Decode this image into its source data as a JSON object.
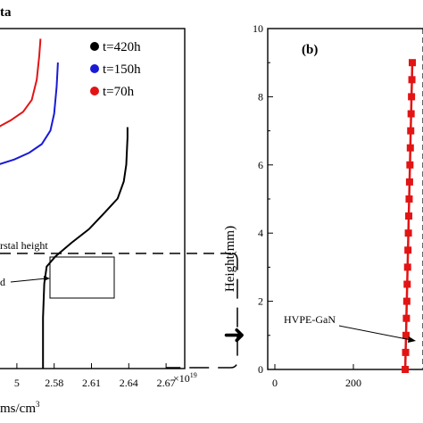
{
  "chart_data": [
    {
      "type": "line",
      "panel": "left",
      "title_fragment": "ta",
      "xlabel_fragment": "ms/cm",
      "xlabel_superscript": "3",
      "x_multiplier": "×10",
      "x_multiplier_exp": "19",
      "xticks": [
        "5",
        "2.58",
        "2.61",
        "2.64",
        "2.67"
      ],
      "xtick_values": [
        2.55,
        2.58,
        2.61,
        2.64,
        2.67
      ],
      "xlim": [
        2.535,
        2.685
      ],
      "ylim": [
        0,
        10
      ],
      "legend": [
        "t=420h",
        "t=150h",
        "t=70h"
      ],
      "legend_colors": [
        "#000000",
        "#1a1ad6",
        "#e21414"
      ],
      "series": [
        {
          "name": "t=420h",
          "color": "#000000",
          "x": [
            2.571,
            2.571,
            2.572,
            2.574,
            2.581,
            2.594,
            2.608,
            2.621,
            2.631,
            2.636,
            2.638,
            2.639,
            2.639
          ],
          "y": [
            0.0,
            1.5,
            2.5,
            3.0,
            3.3,
            3.7,
            4.1,
            4.6,
            5.0,
            5.5,
            6.0,
            6.8,
            7.1
          ]
        },
        {
          "name": "t=150h",
          "color": "#1a1ad6",
          "x": [
            2.535,
            2.548,
            2.56,
            2.57,
            2.577,
            2.58,
            2.582,
            2.583
          ],
          "y": [
            6.0,
            6.15,
            6.35,
            6.6,
            7.0,
            7.5,
            8.3,
            9.0
          ]
        },
        {
          "name": "t=70h",
          "color": "#e21414",
          "x": [
            2.535,
            2.545,
            2.555,
            2.562,
            2.566,
            2.568,
            2.569
          ],
          "y": [
            7.1,
            7.3,
            7.55,
            7.9,
            8.5,
            9.2,
            9.7
          ]
        }
      ],
      "annotations": [
        "rstal height",
        "d"
      ]
    },
    {
      "type": "line",
      "panel": "right",
      "panel_label": "(b)",
      "ylabel": "Height(mm)",
      "yticks": [
        "0",
        "2",
        "4",
        "6",
        "8",
        "10"
      ],
      "xticks": [
        "0",
        "200"
      ],
      "ylim": [
        0,
        10
      ],
      "annotation": "HVPE-GaN",
      "series": [
        {
          "color": "#e21414",
          "y": [
            0.0,
            0.5,
            1.0,
            1.5,
            2.0,
            2.5,
            3.0,
            3.5,
            4.0,
            4.5,
            5.0,
            5.5,
            6.0,
            6.5,
            7.0,
            7.5,
            8.0,
            8.5,
            9.0
          ],
          "x": [
            332,
            333,
            334,
            335,
            336,
            337,
            338,
            339,
            340,
            341,
            342,
            343,
            344,
            345,
            346,
            347,
            348,
            349,
            350
          ]
        }
      ]
    }
  ],
  "arrow": "➜"
}
